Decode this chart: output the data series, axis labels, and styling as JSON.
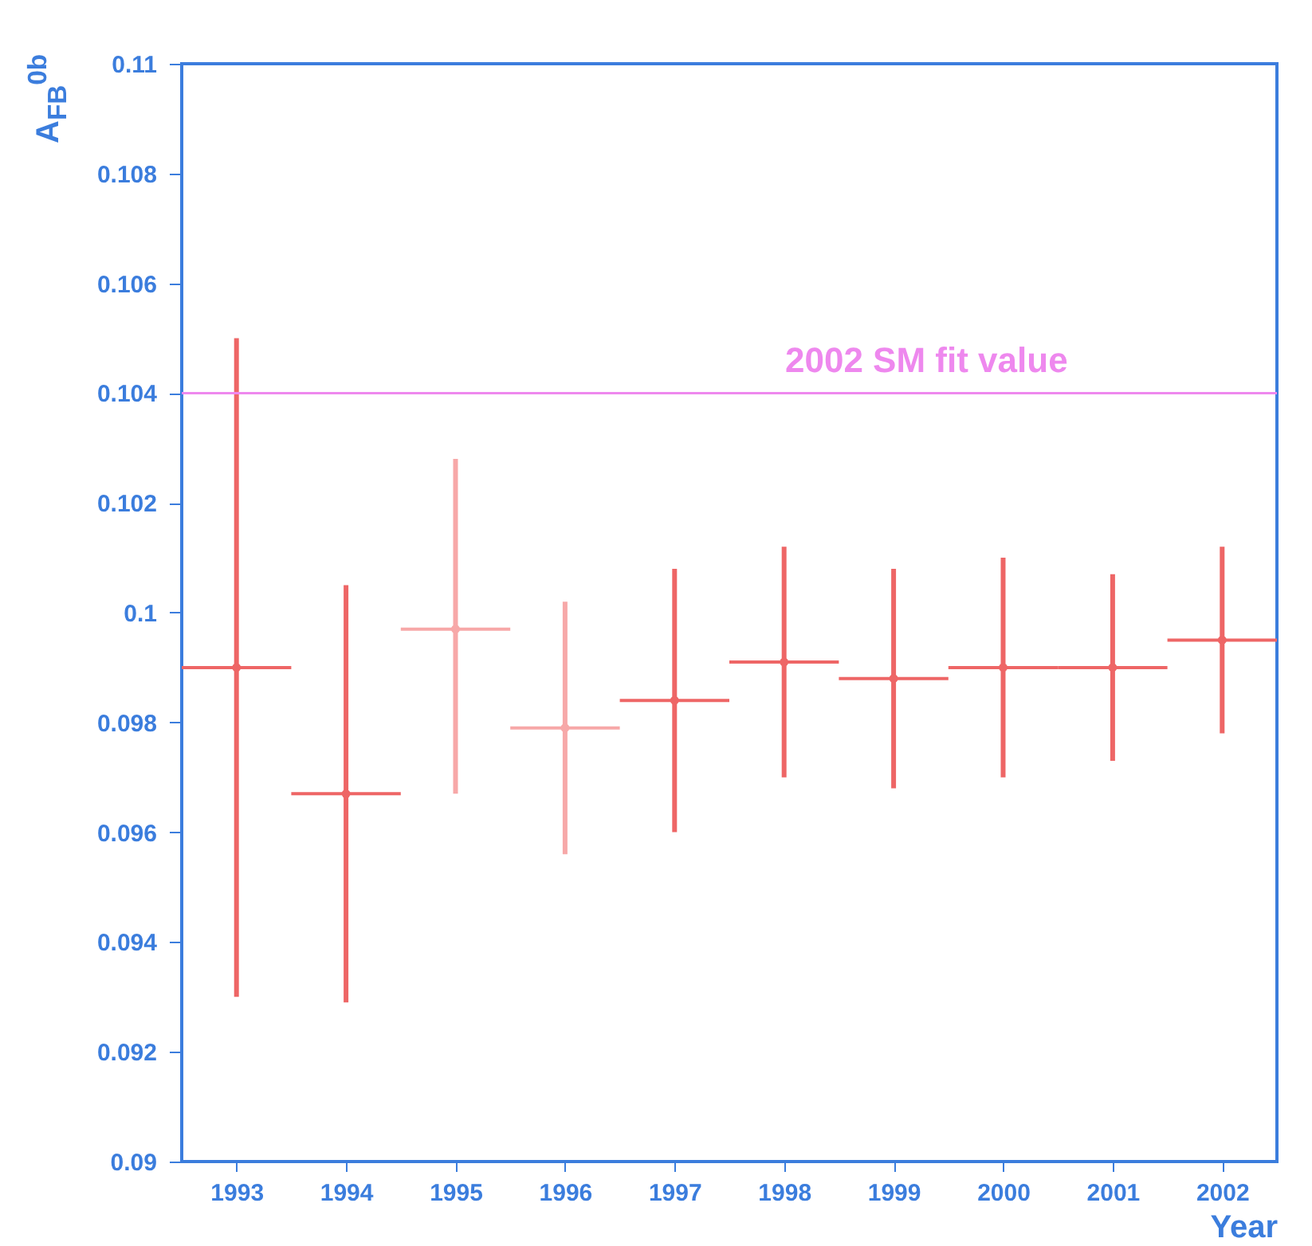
{
  "chart_data": {
    "type": "scatter",
    "ylabel": "A$_{FB}$$^{0b}$",
    "xlabel": "Year",
    "x": [
      1993,
      1994,
      1995,
      1996,
      1997,
      1998,
      1999,
      2000,
      2001,
      2002
    ],
    "values": [
      0.099,
      0.0967,
      0.0997,
      0.0979,
      0.0984,
      0.0991,
      0.0988,
      0.099,
      0.099,
      0.0995
    ],
    "errors": [
      [
        0.093,
        0.105
      ],
      [
        0.0929,
        0.1005
      ],
      [
        0.0967,
        0.1028
      ],
      [
        0.0956,
        0.1002
      ],
      [
        0.096,
        0.1008
      ],
      [
        0.097,
        0.1012
      ],
      [
        0.0968,
        0.1008
      ],
      [
        0.097,
        0.101
      ],
      [
        0.0973,
        0.1007
      ],
      [
        0.0978,
        0.1012
      ]
    ],
    "xerrors": [
      0.5,
      0.5,
      0.5,
      0.5,
      0.5,
      0.5,
      0.5,
      0.5,
      0.5,
      0.5
    ],
    "colors": [
      "#ee6666",
      "#ee6666",
      "#f7a8a8",
      "#f7a8a8",
      "#ee6666",
      "#ee6666",
      "#ee6666",
      "#ee6666",
      "#ee6666",
      "#ee6666"
    ],
    "xlim": [
      1992.5,
      2002.5
    ],
    "xticks": [
      1993,
      1994,
      1995,
      1996,
      1997,
      1998,
      1999,
      2000,
      2001,
      2002
    ],
    "ylim": [
      0.09,
      0.11
    ],
    "yticks": [
      0.09,
      0.092,
      0.094,
      0.096,
      0.098,
      0.1,
      0.102,
      0.104,
      0.106,
      0.108,
      0.11
    ],
    "ref_lines": [
      {
        "axis": "y",
        "value": 0.104,
        "label": "2002 SM fit value",
        "color": "#ee88ee"
      }
    ],
    "grid": false,
    "marker": "circle"
  }
}
